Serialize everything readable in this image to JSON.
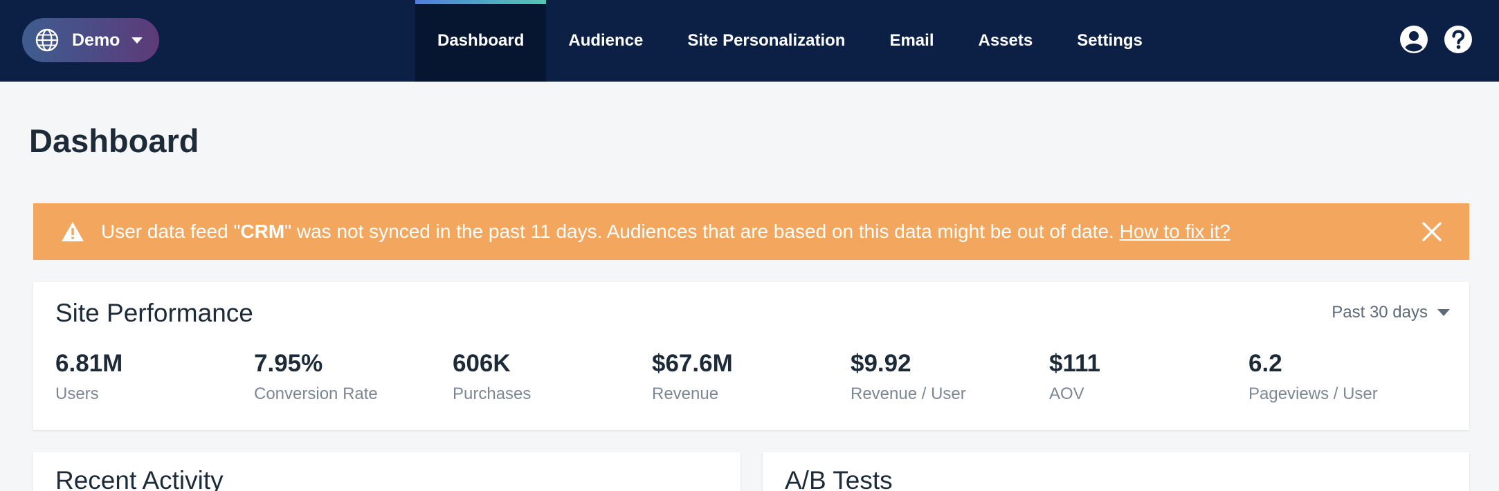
{
  "header": {
    "workspace": {
      "label": "Demo",
      "icon": "globe-icon"
    },
    "tabs": [
      {
        "label": "Dashboard",
        "active": true
      },
      {
        "label": "Audience",
        "active": false
      },
      {
        "label": "Site Personalization",
        "active": false
      },
      {
        "label": "Email",
        "active": false
      },
      {
        "label": "Assets",
        "active": false
      },
      {
        "label": "Settings",
        "active": false
      }
    ],
    "icons": [
      "user-icon",
      "help-icon"
    ]
  },
  "page": {
    "title": "Dashboard"
  },
  "alert": {
    "icon": "warning-icon",
    "text_before": "User data feed \"",
    "feed_name": "CRM",
    "text_after": "\" was not synced in the past 11 days. Audiences that are based on this data might be out of date. ",
    "link_text": "How to fix it?",
    "close_icon": "close-icon",
    "background": "#f3a65e"
  },
  "site_performance": {
    "title": "Site Performance",
    "period": "Past 30 days",
    "metrics": [
      {
        "value": "6.81M",
        "label": "Users"
      },
      {
        "value": "7.95%",
        "label": "Conversion Rate"
      },
      {
        "value": "606K",
        "label": "Purchases"
      },
      {
        "value": "$67.6M",
        "label": "Revenue"
      },
      {
        "value": "$9.92",
        "label": "Revenue / User"
      },
      {
        "value": "$111",
        "label": "AOV"
      },
      {
        "value": "6.2",
        "label": "Pageviews / User"
      }
    ]
  },
  "sections": {
    "recent_activity": {
      "title": "Recent Activity"
    },
    "ab_tests": {
      "title": "A/B Tests"
    }
  },
  "colors": {
    "nav_background": "#0c1f45",
    "nav_active": "#061530",
    "page_background": "#f4f6f8",
    "accent_start": "#4f7fd6",
    "accent_end": "#59c4b4"
  }
}
